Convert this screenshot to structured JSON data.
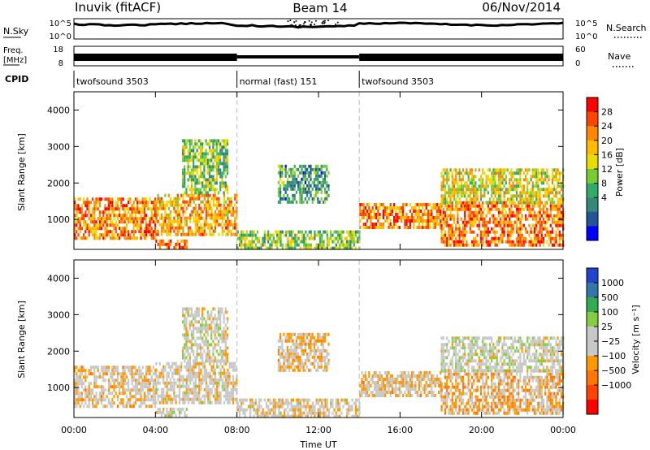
{
  "header": {
    "station": "Inuvik (fitACF)",
    "beam": "Beam 14",
    "date": "06/Nov/2014"
  },
  "strips": {
    "nsky_label": "N.Sky",
    "nsearch_label": "N.Search",
    "nsky_ticks": [
      "10^5",
      "10^0"
    ],
    "nsearch_ticks": [
      "10^5",
      "10^0"
    ],
    "freq_label_1": "Freq.",
    "freq_label_2": "[MHz]",
    "freq_ticks": [
      "18",
      "8"
    ],
    "nave_label": "Nave",
    "nave_ticks": [
      "60",
      "0"
    ],
    "cpid_label": "CPID"
  },
  "modes": [
    {
      "name": "twofsound",
      "id": "3503",
      "start_h": 0,
      "end_h": 8
    },
    {
      "name": "normal (fast)",
      "id": "151",
      "start_h": 8,
      "end_h": 14
    },
    {
      "name": "twofsound",
      "id": "3503",
      "start_h": 14,
      "end_h": 24
    }
  ],
  "chart_data": [
    {
      "type": "heatmap",
      "panel": "power",
      "ylabel": "Slant Range [km]",
      "xlim_hours": [
        0,
        24
      ],
      "ylim_km": [
        180,
        4500
      ],
      "yticks": [
        "4000",
        "3000",
        "2000",
        "1000"
      ],
      "colorbar_label": "Power [dB]",
      "colorbar_ticks": [
        "28",
        "24",
        "20",
        "16",
        "12",
        "8",
        "4"
      ],
      "colorbar_colors": [
        "#ff0000",
        "#ff4400",
        "#ff8800",
        "#ffbb00",
        "#e8dd00",
        "#77cc33",
        "#33aa66",
        "#338877",
        "#225599",
        "#0000ff"
      ],
      "echo_bands": [
        {
          "start_h": 0.0,
          "end_h": 4.0,
          "low_km": 520,
          "high_km": 1600,
          "mean_db": 24
        },
        {
          "start_h": 4.0,
          "end_h": 8.0,
          "low_km": 600,
          "high_km": 1700,
          "mean_db": 22
        },
        {
          "start_h": 4.0,
          "end_h": 5.5,
          "low_km": 200,
          "high_km": 450,
          "mean_db": 26
        },
        {
          "start_h": 5.3,
          "end_h": 7.5,
          "low_km": 1700,
          "high_km": 3200,
          "mean_db": 14
        },
        {
          "start_h": 8.0,
          "end_h": 14.0,
          "low_km": 200,
          "high_km": 700,
          "mean_db": 14
        },
        {
          "start_h": 10.0,
          "end_h": 12.5,
          "low_km": 1500,
          "high_km": 2500,
          "mean_db": 10
        },
        {
          "start_h": 14.0,
          "end_h": 18.0,
          "low_km": 750,
          "high_km": 1450,
          "mean_db": 24
        },
        {
          "start_h": 18.0,
          "end_h": 24.0,
          "low_km": 300,
          "high_km": 1500,
          "mean_db": 25
        },
        {
          "start_h": 18.0,
          "end_h": 24.0,
          "low_km": 1500,
          "high_km": 2400,
          "mean_db": 18
        }
      ]
    },
    {
      "type": "heatmap",
      "panel": "velocity",
      "ylabel": "Slant Range [km]",
      "xlabel": "Time UT",
      "xticks": [
        "00:00",
        "04:00",
        "08:00",
        "12:00",
        "16:00",
        "20:00",
        "00:00"
      ],
      "xlim_hours": [
        0,
        24
      ],
      "ylim_km": [
        180,
        4500
      ],
      "yticks": [
        "4000",
        "3000",
        "2000",
        "1000"
      ],
      "colorbar_label": "Velocity [m s⁻¹]",
      "colorbar_ticks": [
        "1000",
        "500",
        "100",
        "25",
        "−25",
        "−100",
        "−500",
        "−1000"
      ],
      "colorbar_colors": [
        "#2244cc",
        "#3377aa",
        "#33aa55",
        "#88cc44",
        "#c8c8c8",
        "#c8c8c8",
        "#ff9900",
        "#ff7700",
        "#ff4400",
        "#ff0000"
      ],
      "echo_bands": [
        {
          "start_h": 0.0,
          "end_h": 4.0,
          "low_km": 520,
          "high_km": 1600,
          "mean_ms": -150
        },
        {
          "start_h": 4.0,
          "end_h": 8.0,
          "low_km": 600,
          "high_km": 1700,
          "mean_ms": -80
        },
        {
          "start_h": 4.0,
          "end_h": 5.5,
          "low_km": 200,
          "high_km": 450,
          "mean_ms": 0
        },
        {
          "start_h": 5.3,
          "end_h": 7.5,
          "low_km": 1700,
          "high_km": 3200,
          "mean_ms": 0
        },
        {
          "start_h": 8.0,
          "end_h": 14.0,
          "low_km": 200,
          "high_km": 700,
          "mean_ms": -100
        },
        {
          "start_h": 10.0,
          "end_h": 12.5,
          "low_km": 1500,
          "high_km": 2500,
          "mean_ms": -200
        },
        {
          "start_h": 14.0,
          "end_h": 18.0,
          "low_km": 750,
          "high_km": 1450,
          "mean_ms": -150
        },
        {
          "start_h": 18.0,
          "end_h": 24.0,
          "low_km": 300,
          "high_km": 1500,
          "mean_ms": -300
        },
        {
          "start_h": 18.0,
          "end_h": 24.0,
          "low_km": 1500,
          "high_km": 2400,
          "mean_ms": 50
        }
      ]
    }
  ]
}
